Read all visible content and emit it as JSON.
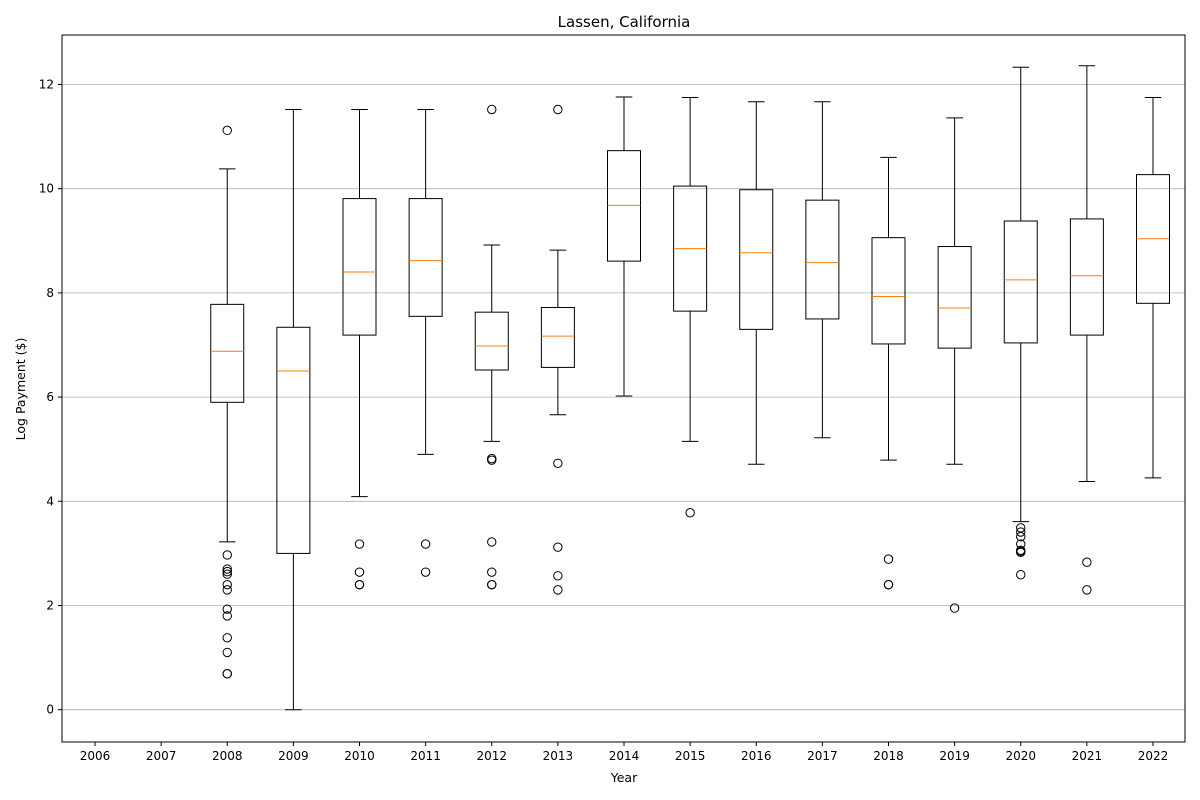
{
  "chart_data": {
    "type": "boxplot",
    "title": "Lassen, California",
    "xlabel": "Year",
    "ylabel": "Log Payment ($)",
    "categories": [
      "2006",
      "2007",
      "2008",
      "2009",
      "2010",
      "2011",
      "2012",
      "2013",
      "2014",
      "2015",
      "2016",
      "2017",
      "2018",
      "2019",
      "2020",
      "2021",
      "2022"
    ],
    "ylim": [
      -0.62,
      12.95
    ],
    "yticks": [
      0,
      2,
      4,
      6,
      8,
      10,
      12
    ],
    "grid": "y",
    "colors": {
      "box": "#000000",
      "median": "#ff7f0e",
      "grid": "#b0b0b0"
    },
    "boxes": [
      {
        "year": "2006",
        "empty": true
      },
      {
        "year": "2007",
        "empty": true
      },
      {
        "year": "2008",
        "whislo": 3.22,
        "q1": 5.9,
        "med": 6.88,
        "q3": 7.78,
        "whishi": 10.38,
        "fliers": [
          11.12,
          2.97,
          2.7,
          2.65,
          2.6,
          2.4,
          2.3,
          1.93,
          1.8,
          1.38,
          1.1,
          0.69,
          0.69
        ]
      },
      {
        "year": "2009",
        "whislo": 0.0,
        "q1": 3.0,
        "med": 6.5,
        "q3": 7.34,
        "whishi": 11.52,
        "fliers": []
      },
      {
        "year": "2010",
        "whislo": 4.09,
        "q1": 7.19,
        "med": 8.4,
        "q3": 9.81,
        "whishi": 11.52,
        "fliers": [
          3.18,
          2.64,
          2.4,
          2.4
        ]
      },
      {
        "year": "2011",
        "whislo": 4.9,
        "q1": 7.55,
        "med": 8.62,
        "q3": 9.81,
        "whishi": 11.52,
        "fliers": [
          3.18,
          2.64
        ]
      },
      {
        "year": "2012",
        "whislo": 5.15,
        "q1": 6.52,
        "med": 6.98,
        "q3": 7.63,
        "whishi": 8.92,
        "fliers": [
          11.52,
          4.82,
          4.79,
          3.22,
          2.64,
          2.4,
          2.4
        ]
      },
      {
        "year": "2013",
        "whislo": 5.66,
        "q1": 6.57,
        "med": 7.17,
        "q3": 7.72,
        "whishi": 8.82,
        "fliers": [
          11.52,
          4.73,
          3.12,
          2.57,
          2.3
        ]
      },
      {
        "year": "2014",
        "whislo": 6.02,
        "q1": 8.61,
        "med": 9.68,
        "q3": 10.73,
        "whishi": 11.76,
        "fliers": []
      },
      {
        "year": "2015",
        "whislo": 5.15,
        "q1": 7.65,
        "med": 8.85,
        "q3": 10.05,
        "whishi": 11.75,
        "fliers": [
          3.78
        ]
      },
      {
        "year": "2016",
        "whislo": 4.71,
        "q1": 7.3,
        "med": 8.77,
        "q3": 9.98,
        "whishi": 11.67,
        "fliers": []
      },
      {
        "year": "2017",
        "whislo": 5.22,
        "q1": 7.5,
        "med": 8.58,
        "q3": 9.78,
        "whishi": 11.67,
        "fliers": []
      },
      {
        "year": "2018",
        "whislo": 4.79,
        "q1": 7.02,
        "med": 7.93,
        "q3": 9.06,
        "whishi": 10.6,
        "fliers": [
          2.89,
          2.4,
          2.4
        ]
      },
      {
        "year": "2019",
        "whislo": 4.71,
        "q1": 6.94,
        "med": 7.71,
        "q3": 8.89,
        "whishi": 11.36,
        "fliers": [
          1.95
        ]
      },
      {
        "year": "2020",
        "whislo": 3.61,
        "q1": 7.04,
        "med": 8.25,
        "q3": 9.38,
        "whishi": 12.33,
        "fliers": [
          3.49,
          3.41,
          3.32,
          3.18,
          3.06,
          3.04,
          3.02,
          2.59
        ]
      },
      {
        "year": "2021",
        "whislo": 4.38,
        "q1": 7.19,
        "med": 8.33,
        "q3": 9.42,
        "whishi": 12.36,
        "fliers": [
          2.83,
          2.3
        ]
      },
      {
        "year": "2022",
        "whislo": 4.45,
        "q1": 7.8,
        "med": 9.04,
        "q3": 10.27,
        "whishi": 11.75,
        "fliers": []
      }
    ]
  }
}
